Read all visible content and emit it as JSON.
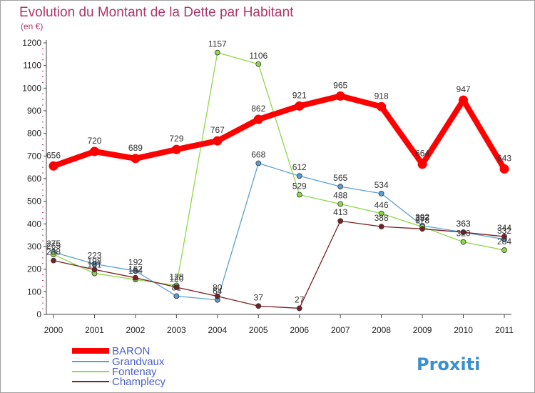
{
  "chart_data": {
    "type": "line",
    "title": "Evolution du Montant de la Dette par Habitant",
    "subtitle": "(en €)",
    "categories": [
      "2000",
      "2001",
      "2002",
      "2003",
      "2004",
      "2005",
      "2006",
      "2007",
      "2008",
      "2009",
      "2010",
      "2011"
    ],
    "ylim": [
      0,
      1200
    ],
    "yticks": [
      0,
      100,
      200,
      300,
      400,
      500,
      600,
      700,
      800,
      900,
      1000,
      1100,
      1200
    ],
    "grid": false,
    "legend_position": "bottom-left",
    "series": [
      {
        "name": "BARON",
        "color": "#ff0000",
        "values": [
          656,
          720,
          689,
          729,
          767,
          862,
          921,
          965,
          918,
          664,
          947,
          643
        ]
      },
      {
        "name": "Grandvaux",
        "color": "#5a9fd4",
        "values": [
          275,
          223,
          192,
          81,
          64,
          668,
          612,
          565,
          534,
          392,
          363,
          332
        ]
      },
      {
        "name": "Fontenay",
        "color": "#8ed84a",
        "values": [
          265,
          181,
          154,
          128,
          1157,
          1106,
          529,
          488,
          446,
          387,
          320,
          284
        ]
      },
      {
        "name": "Champlecy",
        "color": "#7a2025",
        "values": [
          238,
          198,
          162,
          120,
          80,
          37,
          27,
          413,
          388,
          378,
          363,
          344
        ]
      }
    ]
  },
  "logo": {
    "text": "Proxiti"
  }
}
